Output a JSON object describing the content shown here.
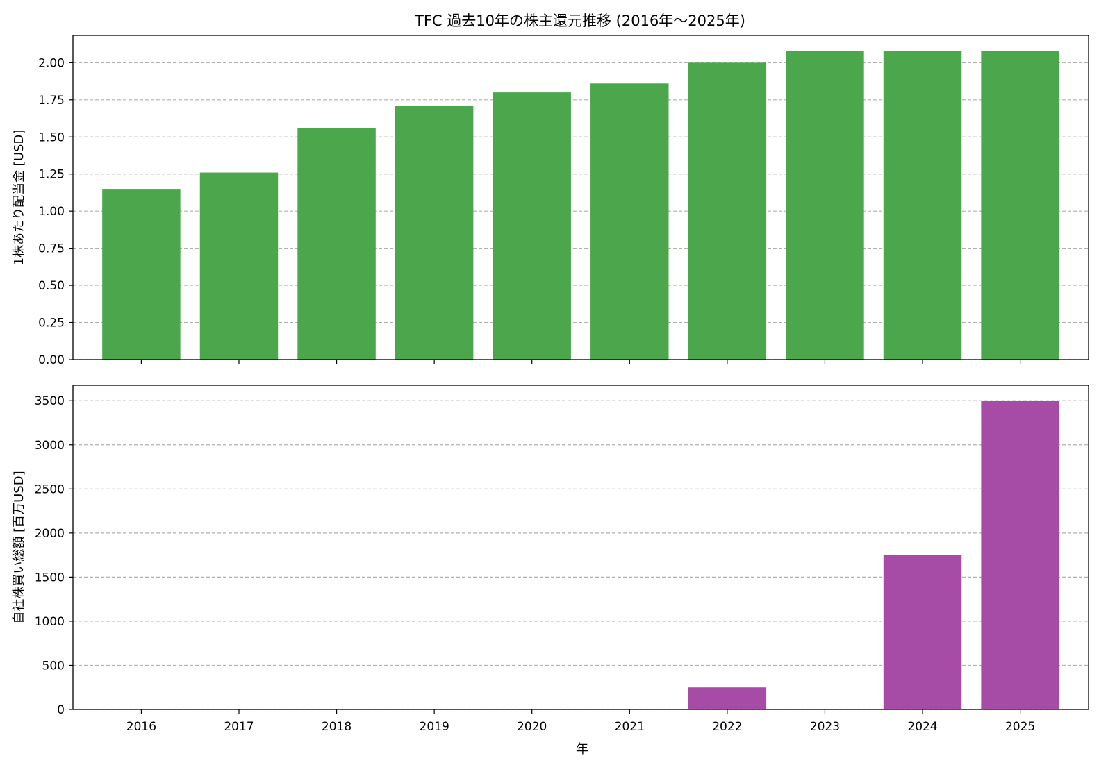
{
  "chart_data": [
    {
      "type": "bar",
      "title": "TFC 過去10年の株主還元推移 (2016年～2025年)",
      "categories": [
        "2016",
        "2017",
        "2018",
        "2019",
        "2020",
        "2021",
        "2022",
        "2023",
        "2024",
        "2025"
      ],
      "values": [
        1.15,
        1.26,
        1.56,
        1.71,
        1.8,
        1.86,
        2.0,
        2.08,
        2.08,
        2.08
      ],
      "xlabel": "",
      "ylabel": "1株あたり配当金 [USD]",
      "ylim": [
        0,
        2.184
      ],
      "yticks": [
        "0.00",
        "0.25",
        "0.50",
        "0.75",
        "1.00",
        "1.25",
        "1.50",
        "1.75",
        "2.00"
      ],
      "ytick_values": [
        0,
        0.25,
        0.5,
        0.75,
        1.0,
        1.25,
        1.5,
        1.75,
        2.0
      ],
      "color": "#4ca64c",
      "grid": "y-dashed"
    },
    {
      "type": "bar",
      "categories": [
        "2016",
        "2017",
        "2018",
        "2019",
        "2020",
        "2021",
        "2022",
        "2023",
        "2024",
        "2025"
      ],
      "values": [
        0,
        0,
        0,
        0,
        0,
        0,
        250,
        0,
        1750,
        3500
      ],
      "xlabel": "年",
      "ylabel": "自社株買い総額 [百万USD]",
      "ylim": [
        0,
        3675
      ],
      "yticks": [
        "0",
        "500",
        "1000",
        "1500",
        "2000",
        "2500",
        "3000",
        "3500"
      ],
      "ytick_values": [
        0,
        500,
        1000,
        1500,
        2000,
        2500,
        3000,
        3500
      ],
      "color": "#a64ca6",
      "grid": "y-dashed"
    }
  ]
}
